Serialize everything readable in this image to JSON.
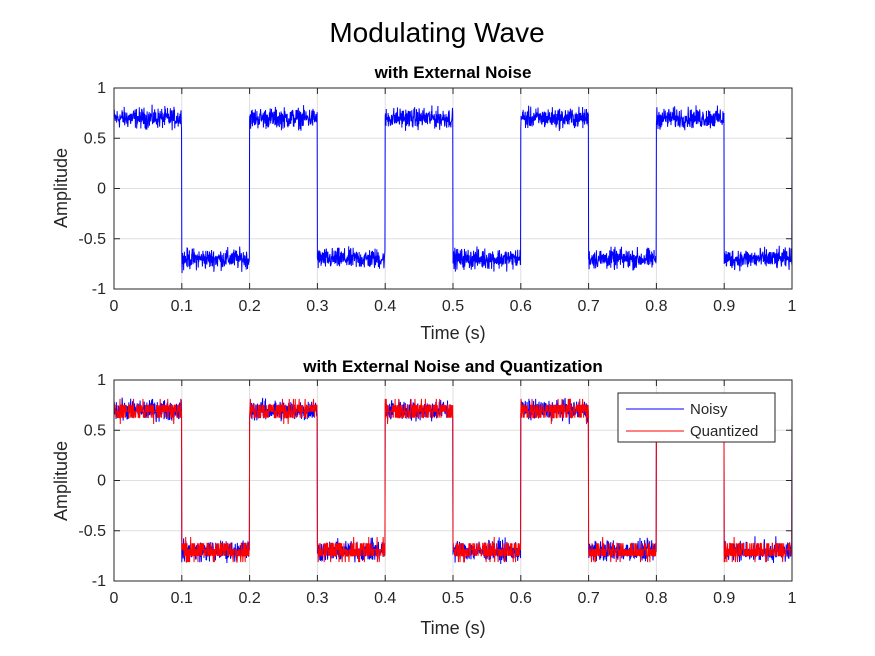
{
  "figure": {
    "title": "Modulating Wave",
    "colors": {
      "noisy": "#0000ff",
      "quantized": "#ff0000",
      "grid": "#dfdfdf",
      "axis": "#262626"
    }
  },
  "chart_data": [
    {
      "type": "line",
      "title": "with External Noise",
      "xlabel": "Time (s)",
      "ylabel": "Amplitude",
      "xlim": [
        0,
        1
      ],
      "ylim": [
        -1,
        1
      ],
      "xticks": [
        0,
        0.1,
        0.2,
        0.3,
        0.4,
        0.5,
        0.6,
        0.7,
        0.8,
        0.9,
        1
      ],
      "xtick_labels": [
        "0",
        "0.1",
        "0.2",
        "0.3",
        "0.4",
        "0.5",
        "0.6",
        "0.7",
        "0.8",
        "0.9",
        "1"
      ],
      "yticks": [
        -1,
        -0.5,
        0,
        0.5,
        1
      ],
      "ytick_labels": [
        "-1",
        "-0.5",
        "0",
        "0.5",
        "1"
      ],
      "grid": true,
      "series": [
        {
          "color": "#0000ff",
          "waveform": "square",
          "period": 0.2,
          "amplitude": 0.7,
          "noise_band": 0.15,
          "segments": [
            {
              "x": [
                0,
                0.1
              ],
              "y": 0.7
            },
            {
              "x": [
                0.1,
                0.2
              ],
              "y": -0.7
            },
            {
              "x": [
                0.2,
                0.3
              ],
              "y": 0.7
            },
            {
              "x": [
                0.3,
                0.4
              ],
              "y": -0.7
            },
            {
              "x": [
                0.4,
                0.5
              ],
              "y": 0.7
            },
            {
              "x": [
                0.5,
                0.6
              ],
              "y": -0.7
            },
            {
              "x": [
                0.6,
                0.7
              ],
              "y": 0.7
            },
            {
              "x": [
                0.7,
                0.8
              ],
              "y": -0.7
            },
            {
              "x": [
                0.8,
                0.9
              ],
              "y": 0.7
            },
            {
              "x": [
                0.9,
                1.0
              ],
              "y": -0.7
            }
          ]
        }
      ]
    },
    {
      "type": "line",
      "title": "with External Noise and Quantization",
      "xlabel": "Time (s)",
      "ylabel": "Amplitude",
      "xlim": [
        0,
        1
      ],
      "ylim": [
        -1,
        1
      ],
      "xticks": [
        0,
        0.1,
        0.2,
        0.3,
        0.4,
        0.5,
        0.6,
        0.7,
        0.8,
        0.9,
        1
      ],
      "xtick_labels": [
        "0",
        "0.1",
        "0.2",
        "0.3",
        "0.4",
        "0.5",
        "0.6",
        "0.7",
        "0.8",
        "0.9",
        "1"
      ],
      "yticks": [
        -1,
        -0.5,
        0,
        0.5,
        1
      ],
      "ytick_labels": [
        "-1",
        "-0.5",
        "0",
        "0.5",
        "1"
      ],
      "grid": true,
      "legend": {
        "placement": "top-right",
        "entries": [
          "Noisy",
          "Quantized"
        ]
      },
      "series": [
        {
          "name": "Noisy",
          "color": "#0000ff",
          "waveform": "square",
          "period": 0.2,
          "amplitude": 0.7,
          "noise_band": 0.15
        },
        {
          "name": "Quantized",
          "color": "#ff0000",
          "waveform": "square",
          "period": 0.2,
          "amplitude": 0.7,
          "noise_band": 0.14
        }
      ]
    }
  ]
}
